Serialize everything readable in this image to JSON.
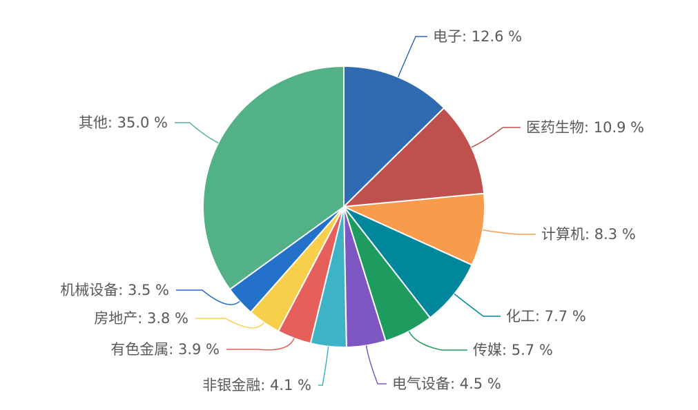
{
  "chart_data": {
    "type": "pie",
    "title": "",
    "unit": "%",
    "slices": [
      {
        "name": "电子",
        "value": 12.6,
        "color": "#2E6BB0",
        "label": "电子: 12.6 %"
      },
      {
        "name": "医药生物",
        "value": 10.9,
        "color": "#C0504D",
        "label": "医药生物: 10.9 %"
      },
      {
        "name": "计算机",
        "value": 8.3,
        "color": "#F79C4C",
        "label": "计算机: 8.3 %"
      },
      {
        "name": "化工",
        "value": 7.7,
        "color": "#00879B",
        "label": "化工: 7.7 %"
      },
      {
        "name": "传媒",
        "value": 5.7,
        "color": "#1E9B5E",
        "label": "传媒: 5.7 %"
      },
      {
        "name": "电气设备",
        "value": 4.5,
        "color": "#7E57C2",
        "label": "电气设备: 4.5 %"
      },
      {
        "name": "非银金融",
        "value": 4.1,
        "color": "#3FB3C6",
        "label": "非银金融: 4.1 %"
      },
      {
        "name": "有色金属",
        "value": 3.9,
        "color": "#E5605A",
        "label": "有色金属: 3.9 %"
      },
      {
        "name": "房地产",
        "value": 3.8,
        "color": "#F8CF4A",
        "label": "房地产: 3.8 %"
      },
      {
        "name": "机械设备",
        "value": 3.5,
        "color": "#2371C8",
        "label": "机械设备: 3.5 %"
      },
      {
        "name": "其他",
        "value": 35.0,
        "color": "#52B186",
        "label": "其他: 35.0 %"
      }
    ]
  }
}
